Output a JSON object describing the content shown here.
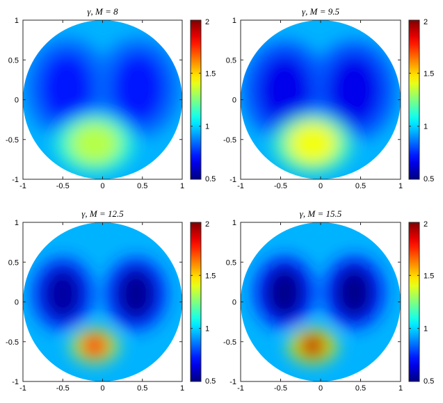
{
  "chart_data": [
    {
      "type": "heatmap",
      "title": "γ, M = 8",
      "xlim": [
        -1,
        1
      ],
      "ylim": [
        -1,
        1
      ],
      "xticks": [
        "-1",
        "-0.5",
        "0",
        "0.5",
        "1"
      ],
      "yticks": [
        "1",
        "0.5",
        "0",
        "-0.5",
        "-1"
      ],
      "colorbar": {
        "range": [
          0.5,
          2
        ],
        "ticks": [
          "2",
          "1.5",
          "1",
          "0.5"
        ]
      },
      "background_value": 0.95,
      "features": [
        {
          "kind": "low",
          "x": -0.45,
          "y": 0.15,
          "value": 0.72
        },
        {
          "kind": "low",
          "x": 0.45,
          "y": 0.15,
          "value": 0.72
        },
        {
          "kind": "high",
          "x": -0.1,
          "y": -0.55,
          "value": 1.33
        }
      ]
    },
    {
      "type": "heatmap",
      "title": "γ, M = 9.5",
      "xlim": [
        -1,
        1
      ],
      "ylim": [
        -1,
        1
      ],
      "xticks": [
        "-1",
        "-0.5",
        "0",
        "0.5",
        "1"
      ],
      "yticks": [
        "1",
        "0.5",
        "0",
        "-0.5",
        "-1"
      ],
      "colorbar": {
        "range": [
          0.5,
          2
        ],
        "ticks": [
          "2",
          "1.5",
          "1",
          "0.5"
        ]
      },
      "background_value": 0.95,
      "features": [
        {
          "kind": "low",
          "x": -0.45,
          "y": 0.12,
          "value": 0.66
        },
        {
          "kind": "low",
          "x": 0.42,
          "y": 0.12,
          "value": 0.66
        },
        {
          "kind": "high",
          "x": -0.1,
          "y": -0.55,
          "value": 1.42
        }
      ]
    },
    {
      "type": "heatmap",
      "title": "γ, M = 12.5",
      "xlim": [
        -1,
        1
      ],
      "ylim": [
        -1,
        1
      ],
      "xticks": [
        "-1",
        "-0.5",
        "0",
        "0.5",
        "1"
      ],
      "yticks": [
        "1",
        "0.5",
        "0",
        "-0.5",
        "-1"
      ],
      "colorbar": {
        "range": [
          0.5,
          2
        ],
        "ticks": [
          "2",
          "1.5",
          "1",
          "0.5"
        ]
      },
      "background_value": 0.95,
      "features": [
        {
          "kind": "low",
          "x": -0.5,
          "y": 0.1,
          "value": 0.55
        },
        {
          "kind": "low",
          "x": 0.42,
          "y": 0.1,
          "value": 0.53
        },
        {
          "kind": "high",
          "x": -0.1,
          "y": -0.55,
          "value": 1.75
        }
      ]
    },
    {
      "type": "heatmap",
      "title": "γ, M = 15.5",
      "xlim": [
        -1,
        1
      ],
      "ylim": [
        -1,
        1
      ],
      "xticks": [
        "-1",
        "-0.5",
        "0",
        "0.5",
        "1"
      ],
      "yticks": [
        "1",
        "0.5",
        "0",
        "-0.5",
        "-1"
      ],
      "colorbar": {
        "range": [
          0.5,
          2
        ],
        "ticks": [
          "2",
          "1.5",
          "1",
          "0.5"
        ]
      },
      "background_value": 0.95,
      "features": [
        {
          "kind": "low",
          "x": -0.45,
          "y": 0.12,
          "value": 0.52
        },
        {
          "kind": "low",
          "x": 0.42,
          "y": 0.12,
          "value": 0.52
        },
        {
          "kind": "high",
          "x": -0.1,
          "y": -0.55,
          "value": 1.9
        }
      ]
    }
  ]
}
